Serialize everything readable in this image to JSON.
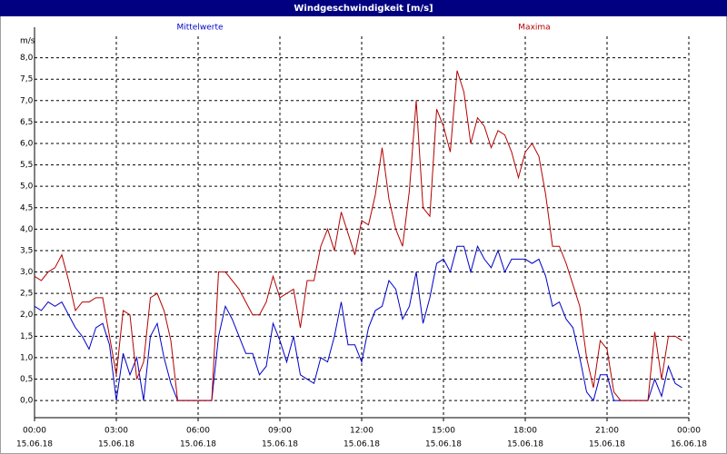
{
  "chart_data": {
    "type": "line",
    "title": "Windgeschwindigkeit [m/s]",
    "y_label": "m/s",
    "x": [
      0,
      0.25,
      0.5,
      0.75,
      1,
      1.25,
      1.5,
      1.75,
      2,
      2.25,
      2.5,
      2.75,
      3,
      3.25,
      3.5,
      3.75,
      4,
      4.25,
      4.5,
      4.75,
      5,
      5.25,
      5.5,
      5.75,
      6,
      6.25,
      6.5,
      6.75,
      7,
      7.25,
      7.5,
      7.75,
      8,
      8.25,
      8.5,
      8.75,
      9,
      9.25,
      9.5,
      9.75,
      10,
      10.25,
      10.5,
      10.75,
      11,
      11.25,
      11.5,
      11.75,
      12,
      12.25,
      12.5,
      12.75,
      13,
      13.25,
      13.5,
      13.75,
      14,
      14.25,
      14.5,
      14.75,
      15,
      15.25,
      15.5,
      15.75,
      16,
      16.25,
      16.5,
      16.75,
      17,
      17.25,
      17.5,
      17.75,
      18,
      18.25,
      18.5,
      18.75,
      19,
      19.25,
      19.5,
      19.75,
      20,
      20.25,
      20.5,
      20.75,
      21,
      21.25,
      21.5,
      21.75,
      22,
      22.25,
      22.5,
      22.75,
      23,
      23.25,
      23.5,
      23.75
    ],
    "series": [
      {
        "name": "Mittelwerte",
        "color": "#0000c8",
        "values": [
          2.2,
          2.1,
          2.3,
          2.2,
          2.3,
          2.0,
          1.7,
          1.5,
          1.2,
          1.7,
          1.8,
          1.3,
          0.0,
          1.1,
          0.6,
          1.0,
          0.0,
          1.5,
          1.8,
          1.0,
          0.4,
          0.0,
          0.0,
          0.0,
          0.0,
          0.0,
          0.0,
          1.5,
          2.2,
          1.9,
          1.5,
          1.1,
          1.1,
          0.6,
          0.8,
          1.8,
          1.4,
          0.9,
          1.5,
          0.6,
          0.5,
          0.4,
          1.0,
          0.9,
          1.5,
          2.3,
          1.3,
          1.3,
          0.9,
          1.7,
          2.1,
          2.2,
          2.8,
          2.6,
          1.9,
          2.2,
          3.0,
          1.8,
          2.4,
          3.2,
          3.3,
          3.0,
          3.6,
          3.6,
          3.0,
          3.6,
          3.3,
          3.1,
          3.5,
          3.0,
          3.3,
          3.3,
          3.3,
          3.2,
          3.3,
          2.9,
          2.2,
          2.3,
          1.9,
          1.7,
          1.0,
          0.2,
          0.0,
          0.6,
          0.6,
          0.0,
          0.0,
          0.0,
          0.0,
          0.0,
          0.0,
          0.5,
          0.1,
          0.8,
          0.4,
          0.3
        ]
      },
      {
        "name": "Maxima",
        "color": "#b40000",
        "values": [
          2.9,
          2.8,
          3.0,
          3.1,
          3.4,
          2.8,
          2.1,
          2.3,
          2.3,
          2.4,
          2.4,
          1.5,
          0.6,
          2.1,
          2.0,
          0.5,
          0.9,
          2.4,
          2.5,
          2.1,
          1.4,
          0.0,
          0.0,
          0.0,
          0.0,
          0.0,
          0.0,
          3.0,
          3.0,
          2.8,
          2.6,
          2.3,
          2.0,
          2.0,
          2.3,
          2.9,
          2.4,
          2.5,
          2.6,
          1.7,
          2.8,
          2.8,
          3.6,
          4.0,
          3.5,
          4.4,
          3.9,
          3.4,
          4.2,
          4.1,
          4.8,
          5.9,
          4.7,
          4.0,
          3.6,
          4.9,
          7.0,
          4.5,
          4.3,
          6.8,
          6.4,
          5.8,
          7.7,
          7.2,
          6.0,
          6.6,
          6.4,
          5.9,
          6.3,
          6.2,
          5.8,
          5.2,
          5.8,
          6.0,
          5.7,
          4.8,
          3.6,
          3.6,
          3.2,
          2.7,
          2.2,
          1.0,
          0.3,
          1.4,
          1.2,
          0.2,
          0.0,
          0.0,
          0.0,
          0.0,
          0.0,
          1.6,
          0.5,
          1.5,
          1.5,
          1.4
        ]
      }
    ],
    "xlim": [
      0,
      24
    ],
    "xticks": [
      {
        "value": 0,
        "label": "00:00",
        "date": "15.06.18"
      },
      {
        "value": 3,
        "label": "03:00",
        "date": "15.06.18"
      },
      {
        "value": 6,
        "label": "06:00",
        "date": "15.06.18"
      },
      {
        "value": 9,
        "label": "09:00",
        "date": "15.06.18"
      },
      {
        "value": 12,
        "label": "12:00",
        "date": "15.06.18"
      },
      {
        "value": 15,
        "label": "15:00",
        "date": "15.06.18"
      },
      {
        "value": 18,
        "label": "18:00",
        "date": "15.06.18"
      },
      {
        "value": 21,
        "label": "21:00",
        "date": "15.06.18"
      },
      {
        "value": 24,
        "label": "00:00",
        "date": "16.06.18"
      }
    ],
    "ylim": [
      -0.4,
      8.5
    ],
    "yticks": [
      {
        "value": 0,
        "label": "0,0"
      },
      {
        "value": 0.5,
        "label": "0,5"
      },
      {
        "value": 1,
        "label": "1,0"
      },
      {
        "value": 1.5,
        "label": "1,5"
      },
      {
        "value": 2,
        "label": "2,0"
      },
      {
        "value": 2.5,
        "label": "2,5"
      },
      {
        "value": 3,
        "label": "3,0"
      },
      {
        "value": 3.5,
        "label": "3,5"
      },
      {
        "value": 4,
        "label": "4,0"
      },
      {
        "value": 4.5,
        "label": "4,5"
      },
      {
        "value": 5,
        "label": "5,0"
      },
      {
        "value": 5.5,
        "label": "5,5"
      },
      {
        "value": 6,
        "label": "6,0"
      },
      {
        "value": 6.5,
        "label": "6,5"
      },
      {
        "value": 7,
        "label": "7,0"
      },
      {
        "value": 7.5,
        "label": "7,5"
      },
      {
        "value": 8,
        "label": "8,0"
      }
    ],
    "grid": true
  }
}
